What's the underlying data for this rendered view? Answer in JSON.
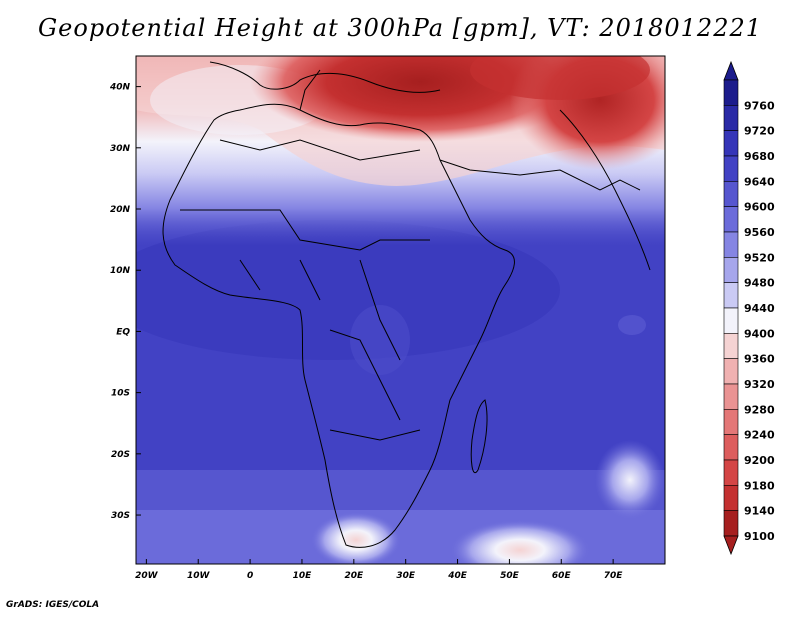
{
  "title": "Geopotential Height at 300hPa [gpm], VT: 2018012221",
  "credit": "GrADS: IGES/COLA",
  "map": {
    "lon_range": [
      -22,
      80
    ],
    "lat_range": [
      -38,
      45
    ],
    "lon_ticks": [
      {
        "value": -20,
        "label": "20W"
      },
      {
        "value": -10,
        "label": "10W"
      },
      {
        "value": 0,
        "label": "0"
      },
      {
        "value": 10,
        "label": "10E"
      },
      {
        "value": 20,
        "label": "20E"
      },
      {
        "value": 30,
        "label": "30E"
      },
      {
        "value": 40,
        "label": "40E"
      },
      {
        "value": 50,
        "label": "50E"
      },
      {
        "value": 60,
        "label": "60E"
      },
      {
        "value": 70,
        "label": "70E"
      }
    ],
    "lat_ticks": [
      {
        "value": 40,
        "label": "40N"
      },
      {
        "value": 30,
        "label": "30N"
      },
      {
        "value": 20,
        "label": "20N"
      },
      {
        "value": 10,
        "label": "10N"
      },
      {
        "value": 0,
        "label": "EQ"
      },
      {
        "value": -10,
        "label": "10S"
      },
      {
        "value": -20,
        "label": "20S"
      },
      {
        "value": -30,
        "label": "30S"
      }
    ]
  },
  "colorbar": {
    "levels": [
      {
        "label": "9760",
        "color": "#1c1c8c"
      },
      {
        "label": "9720",
        "color": "#2a2aa6"
      },
      {
        "label": "9680",
        "color": "#3535b8"
      },
      {
        "label": "9640",
        "color": "#4242c4"
      },
      {
        "label": "9600",
        "color": "#5656cf"
      },
      {
        "label": "9560",
        "color": "#6b6bda"
      },
      {
        "label": "9520",
        "color": "#8585e3"
      },
      {
        "label": "9480",
        "color": "#a6a6ec"
      },
      {
        "label": "9440",
        "color": "#cacaf4"
      },
      {
        "label": "9400",
        "color": "#f3f3fb"
      },
      {
        "label": "9360",
        "color": "#f5d3d3"
      },
      {
        "label": "9320",
        "color": "#f0b1b1"
      },
      {
        "label": "9280",
        "color": "#ea9393"
      },
      {
        "label": "9240",
        "color": "#e47777"
      },
      {
        "label": "9200",
        "color": "#dd5d5d"
      },
      {
        "label": "9180",
        "color": "#d44545"
      },
      {
        "label": "9140",
        "color": "#c43030"
      },
      {
        "label": "9100",
        "color": "#a61f1f"
      }
    ]
  }
}
